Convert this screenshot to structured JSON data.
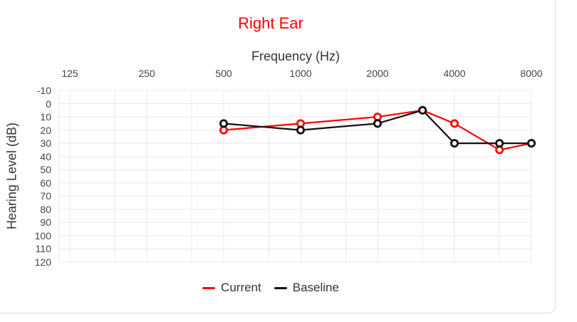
{
  "chart_data": {
    "type": "line",
    "title": "Right Ear",
    "title_color": "#ff0000",
    "xlabel": "Frequency (Hz)",
    "ylabel": "Hearing Level (dB)",
    "x_scale": "log-octave",
    "x_axis_position": "top",
    "y_inverted": true,
    "ylim": [
      -10,
      120
    ],
    "grid": true,
    "legend_position": "bottom",
    "x_ticks": [
      125,
      250,
      500,
      1000,
      2000,
      4000,
      8000
    ],
    "x_tick_labels": [
      "125",
      "250",
      "500",
      "1000",
      "2000",
      "4000",
      "8000"
    ],
    "x_minor_gridlines": [
      187.5,
      375,
      750,
      1500,
      3000,
      6000
    ],
    "y_ticks": [
      -10,
      0,
      10,
      20,
      30,
      40,
      50,
      60,
      70,
      80,
      90,
      100,
      110,
      120
    ],
    "series": [
      {
        "name": "Current",
        "color": "#ff0000",
        "marker": "open-circle",
        "x": [
          500,
          1000,
          2000,
          3000,
          4000,
          6000,
          8000
        ],
        "y": [
          20,
          15,
          10,
          5,
          15,
          35,
          30
        ]
      },
      {
        "name": "Baseline",
        "color": "#111111",
        "marker": "open-circle",
        "x": [
          500,
          1000,
          2000,
          3000,
          4000,
          6000,
          8000
        ],
        "y": [
          15,
          20,
          15,
          5,
          30,
          30,
          30
        ]
      }
    ]
  },
  "colors": {
    "grid": "#e8e8e8",
    "tick_text": "#444444",
    "axis_title_text": "#333333",
    "legend_text": "#333333",
    "card_border": "#dddddd",
    "marker_fill": "#ffffff",
    "background": "#ffffff"
  }
}
